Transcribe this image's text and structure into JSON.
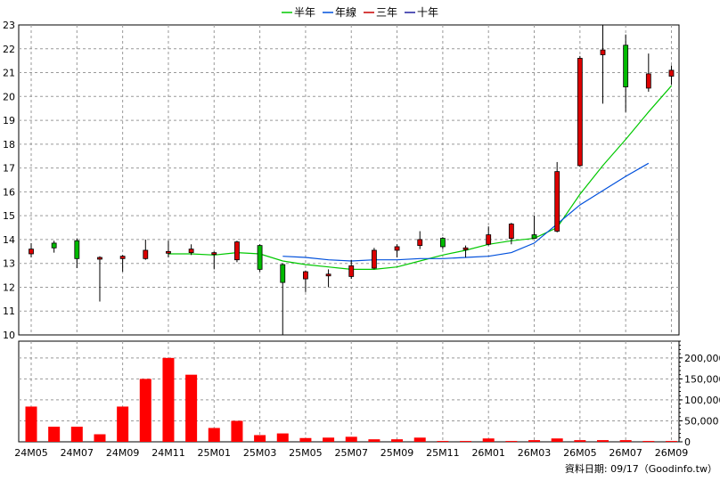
{
  "legend": [
    {
      "name": "半年",
      "color": "#00c800"
    },
    {
      "name": "年線",
      "color": "#0050dc"
    },
    {
      "name": "三年",
      "color": "#c80000"
    },
    {
      "name": "十年",
      "color": "#2020a0"
    }
  ],
  "footer": "資料日期: 09/17（Goodinfo.tw）",
  "chart_data": {
    "type": "candlestick+bar",
    "price_axis": {
      "ylim": [
        10,
        23
      ],
      "ticks": [
        10,
        11,
        12,
        13,
        14,
        15,
        16,
        17,
        18,
        19,
        20,
        21,
        22,
        23
      ]
    },
    "volume_axis": {
      "ylim": [
        0,
        240000
      ],
      "ticks": [
        0,
        50000,
        100000,
        150000,
        200000
      ],
      "tick_labels": [
        "0",
        "50,000",
        "100,000",
        "150,000",
        "200,000"
      ]
    },
    "x_tick_labels": [
      "24M05",
      "24M07",
      "24M09",
      "24M11",
      "25M01",
      "25M03",
      "25M05",
      "25M07",
      "25M09",
      "25M11",
      "26M01",
      "26M03",
      "26M05",
      "26M07",
      "26M09"
    ],
    "months": [
      "24M05",
      "24M06",
      "24M07",
      "24M08",
      "24M09",
      "24M10",
      "24M11",
      "24M12",
      "25M01",
      "25M02",
      "25M03",
      "25M04",
      "25M05",
      "25M06",
      "25M07",
      "25M08",
      "25M09",
      "25M10",
      "25M11",
      "25M12",
      "26M01",
      "26M02",
      "26M03",
      "26M04",
      "26M05",
      "26M06",
      "26M07",
      "26M08",
      "26M09"
    ],
    "candles": [
      {
        "o": 13.4,
        "h": 13.85,
        "l": 13.25,
        "c": 13.6
      },
      {
        "o": 13.85,
        "h": 13.95,
        "l": 13.45,
        "c": 13.65
      },
      {
        "o": 13.95,
        "h": 14.05,
        "l": 12.8,
        "c": 13.2
      },
      {
        "o": 13.25,
        "h": 13.3,
        "l": 11.4,
        "c": 13.25
      },
      {
        "o": 13.2,
        "h": 13.35,
        "l": 12.65,
        "c": 13.3
      },
      {
        "o": 13.2,
        "h": 14.0,
        "l": 13.15,
        "c": 13.55
      },
      {
        "o": 13.5,
        "h": 13.95,
        "l": 13.25,
        "c": 13.5
      },
      {
        "o": 13.45,
        "h": 13.8,
        "l": 13.35,
        "c": 13.6
      },
      {
        "o": 13.4,
        "h": 13.5,
        "l": 12.75,
        "c": 13.45
      },
      {
        "o": 13.15,
        "h": 13.95,
        "l": 13.05,
        "c": 13.9
      },
      {
        "o": 13.75,
        "h": 13.8,
        "l": 12.65,
        "c": 12.75
      },
      {
        "o": 12.95,
        "h": 13.0,
        "l": 10.0,
        "c": 12.2
      },
      {
        "o": 12.35,
        "h": 12.7,
        "l": 11.8,
        "c": 12.65
      },
      {
        "o": 12.5,
        "h": 12.75,
        "l": 12.0,
        "c": 12.55
      },
      {
        "o": 12.45,
        "h": 13.15,
        "l": 12.35,
        "c": 12.9
      },
      {
        "o": 12.8,
        "h": 13.65,
        "l": 12.75,
        "c": 13.55
      },
      {
        "o": 13.55,
        "h": 13.8,
        "l": 13.25,
        "c": 13.7
      },
      {
        "o": 13.75,
        "h": 14.35,
        "l": 13.6,
        "c": 14.0
      },
      {
        "o": 14.05,
        "h": 14.1,
        "l": 13.6,
        "c": 13.7
      },
      {
        "o": 13.6,
        "h": 13.75,
        "l": 13.25,
        "c": 13.65
      },
      {
        "o": 13.8,
        "h": 14.55,
        "l": 13.75,
        "c": 14.2
      },
      {
        "o": 14.05,
        "h": 14.7,
        "l": 13.8,
        "c": 14.65
      },
      {
        "o": 14.2,
        "h": 15.0,
        "l": 14.05,
        "c": 14.05
      },
      {
        "o": 14.35,
        "h": 17.25,
        "l": 14.3,
        "c": 16.85
      },
      {
        "o": 17.1,
        "h": 21.7,
        "l": 17.05,
        "c": 21.6
      },
      {
        "o": 21.75,
        "h": 23.0,
        "l": 19.7,
        "c": 21.95
      },
      {
        "o": 22.15,
        "h": 22.6,
        "l": 19.35,
        "c": 20.4
      },
      {
        "o": 20.35,
        "h": 21.8,
        "l": 20.2,
        "c": 20.95
      },
      {
        "o": 20.85,
        "h": 21.3,
        "l": 20.5,
        "c": 21.1
      }
    ],
    "volume": [
      84000,
      36000,
      36000,
      18000,
      84000,
      150000,
      200000,
      160000,
      33000,
      50000,
      16000,
      20000,
      9000,
      10000,
      12000,
      6000,
      6000,
      10000,
      2000,
      2000,
      8000,
      2000,
      4000,
      8000,
      4000,
      4000,
      4000,
      2000,
      2000
    ],
    "series": [
      {
        "name": "半年",
        "start_index": 6,
        "values": [
          13.4,
          13.4,
          13.35,
          13.45,
          13.4,
          13.1,
          12.95,
          12.85,
          12.75,
          12.75,
          12.85,
          13.1,
          13.35,
          13.55,
          13.8,
          13.95,
          14.05,
          14.5,
          15.9,
          17.1,
          18.2,
          19.35,
          20.45
        ]
      },
      {
        "name": "年線",
        "start_index": 11,
        "values": [
          13.3,
          13.25,
          13.15,
          13.1,
          13.15,
          13.15,
          13.2,
          13.2,
          13.25,
          13.3,
          13.45,
          13.85,
          14.65,
          15.45,
          16.05,
          16.65,
          17.2
        ]
      }
    ]
  }
}
